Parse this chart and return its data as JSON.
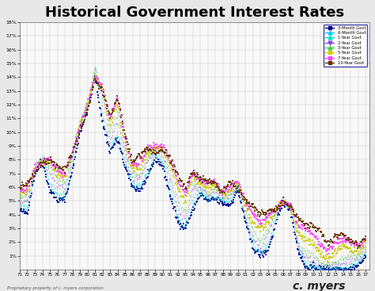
{
  "title": "Historical Government Interest Rates",
  "title_fontsize": 13,
  "background_color": "#e8e8e8",
  "plot_bg_color": "#f8f8f8",
  "ylim": [
    0,
    18
  ],
  "yticks": [
    1,
    2,
    3,
    4,
    5,
    6,
    7,
    8,
    9,
    10,
    11,
    12,
    13,
    14,
    15,
    16,
    17,
    18
  ],
  "ytick_labels": [
    "1%",
    "2%",
    "3%",
    "4%",
    "5%",
    "6%",
    "7%",
    "8%",
    "9%",
    "10%",
    "11%",
    "12%",
    "13%",
    "14%",
    "15%",
    "16%",
    "17%",
    "18%"
  ],
  "xtick_years": [
    "71",
    "72",
    "73",
    "74",
    "75",
    "76",
    "77",
    "78",
    "79",
    "80",
    "81",
    "82",
    "83",
    "84",
    "85",
    "86",
    "87",
    "88",
    "89",
    "90",
    "91",
    "92",
    "93",
    "94",
    "95",
    "96",
    "97",
    "98",
    "99",
    "00",
    "01",
    "02",
    "03",
    "04",
    "05",
    "06",
    "07",
    "08",
    "09",
    "10",
    "11",
    "12",
    "13",
    "14",
    "15",
    "16",
    "17"
  ],
  "series": [
    {
      "name": "3-Month Govt",
      "color": "#00008B",
      "marker": "s"
    },
    {
      "name": "6-Month Govt",
      "color": "#00CCFF",
      "marker": "^"
    },
    {
      "name": "1-Year Govt",
      "color": "#00E5CC",
      "marker": "^"
    },
    {
      "name": "2-Year Govt",
      "color": "#8844DD",
      "marker": "v"
    },
    {
      "name": "3-Year Govt",
      "color": "#44CC44",
      "marker": "^"
    },
    {
      "name": "5-Year Govt",
      "color": "#CCCC00",
      "marker": "s"
    },
    {
      "name": "7-Year Govt",
      "color": "#FF44FF",
      "marker": "s"
    },
    {
      "name": "10-Year Govt",
      "color": "#663300",
      "marker": "s"
    }
  ],
  "footer_left": "Proprietary property of c. myers corporation",
  "footer_right": "c. myers"
}
